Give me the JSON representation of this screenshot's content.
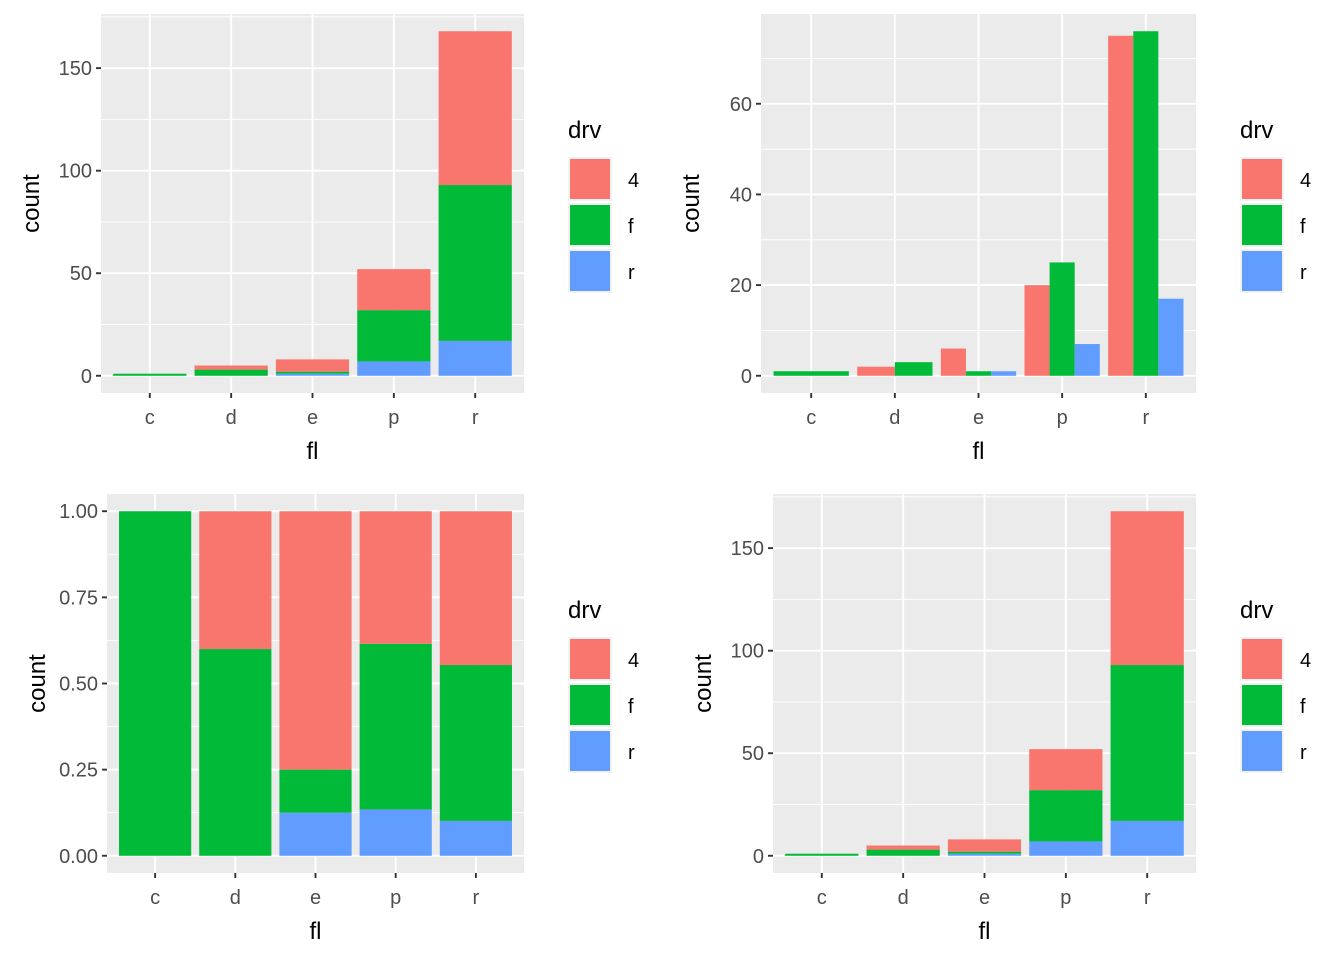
{
  "colors": {
    "4": "#F8766D",
    "f": "#00BA38",
    "r": "#619CFF"
  },
  "chart_data": [
    {
      "type": "bar",
      "position": "stack",
      "categories": [
        "c",
        "d",
        "e",
        "p",
        "r"
      ],
      "series": [
        {
          "name": "4",
          "values": [
            0,
            2,
            6,
            20,
            75
          ]
        },
        {
          "name": "f",
          "values": [
            1,
            3,
            1,
            25,
            76
          ]
        },
        {
          "name": "r",
          "values": [
            0,
            0,
            1,
            7,
            17
          ]
        }
      ],
      "xlabel": "fl",
      "ylabel": "count",
      "ylim": [
        -8.4,
        176.4
      ],
      "yticks": [
        0,
        50,
        100,
        150
      ],
      "ytick_labels": [
        "0",
        "50",
        "100",
        "150"
      ],
      "legend": {
        "title": "drv",
        "labels": [
          "4",
          "f",
          "r"
        ],
        "placement": "right"
      }
    },
    {
      "type": "bar",
      "position": "dodge",
      "categories": [
        "c",
        "d",
        "e",
        "p",
        "r"
      ],
      "series": [
        {
          "name": "4",
          "values": [
            0,
            2,
            6,
            20,
            75
          ]
        },
        {
          "name": "f",
          "values": [
            1,
            3,
            1,
            25,
            76
          ]
        },
        {
          "name": "r",
          "values": [
            0,
            0,
            1,
            7,
            17
          ]
        }
      ],
      "xlabel": "fl",
      "ylabel": "count",
      "ylim": [
        -3.8,
        79.8
      ],
      "yticks": [
        0,
        20,
        40,
        60
      ],
      "ytick_labels": [
        "0",
        "20",
        "40",
        "60"
      ],
      "legend": {
        "title": "drv",
        "labels": [
          "4",
          "f",
          "r"
        ],
        "placement": "right"
      }
    },
    {
      "type": "bar",
      "position": "fill",
      "categories": [
        "c",
        "d",
        "e",
        "p",
        "r"
      ],
      "series": [
        {
          "name": "4",
          "values": [
            0,
            0.4,
            0.75,
            0.3846,
            0.4464
          ]
        },
        {
          "name": "f",
          "values": [
            1,
            0.6,
            0.125,
            0.4808,
            0.4524
          ]
        },
        {
          "name": "r",
          "values": [
            0,
            0,
            0.125,
            0.1346,
            0.1012
          ]
        }
      ],
      "xlabel": "fl",
      "ylabel": "count",
      "ylim": [
        -0.05,
        1.05
      ],
      "yticks": [
        0,
        0.25,
        0.5,
        0.75,
        1
      ],
      "ytick_labels": [
        "0.00",
        "0.25",
        "0.50",
        "0.75",
        "1.00"
      ],
      "legend": {
        "title": "drv",
        "labels": [
          "4",
          "f",
          "r"
        ],
        "placement": "right"
      }
    },
    {
      "type": "bar",
      "position": "stack",
      "categories": [
        "c",
        "d",
        "e",
        "p",
        "r"
      ],
      "series": [
        {
          "name": "4",
          "values": [
            0,
            2,
            6,
            20,
            75
          ]
        },
        {
          "name": "f",
          "values": [
            1,
            3,
            1,
            25,
            76
          ]
        },
        {
          "name": "r",
          "values": [
            0,
            0,
            1,
            7,
            17
          ]
        }
      ],
      "xlabel": "fl",
      "ylabel": "count",
      "ylim": [
        -8.4,
        176.4
      ],
      "yticks": [
        0,
        50,
        100,
        150
      ],
      "ytick_labels": [
        "0",
        "50",
        "100",
        "150"
      ],
      "legend": {
        "title": "drv",
        "labels": [
          "4",
          "f",
          "r"
        ],
        "placement": "right"
      }
    }
  ]
}
